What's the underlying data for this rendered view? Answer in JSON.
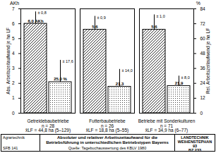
{
  "chart_data": {
    "type": "bar",
    "title": "Absoluter und relativer Arbeitszeitaufwand für die Betriebsführung in unterschiedlichen Betriebstypen Bayerns",
    "source": "Quelle: Tagebuchauswertung des KBLV 1980",
    "footer_left": [
      "Agrartechnik",
      "SFB 141"
    ],
    "footer_right": [
      "LANDTECHNIK WEIHENSTEPHAN",
      "93",
      "BZ 233"
    ],
    "ylabel": "Abs. Arbeitszeitaufwand je ha LF",
    "y2label": "Rel. Arbeitszeitaufwand je ha LF",
    "y_unit": "AKh",
    "y2_unit": "%",
    "categories": [
      "Getreidebaubetriebe",
      "Futterbaubetriebe",
      "Betriebe mit Sonderkulturen"
    ],
    "category_notes": [
      [
        "n = 28",
        "x̄LF = 44,8 ha (5–129)"
      ],
      [
        "n = 26",
        "x̄LF = 18,8 ha (5–55)"
      ],
      [
        "n = 71",
        "x̄LF = 34,9 ha (6–77)"
      ]
    ],
    "series": [
      {
        "axis": "y",
        "color": "#000000",
        "values": [
          6.0,
          5.6,
          5.6
        ],
        "value_labels": [
          "6,0 AKh",
          "5,6",
          "5,6"
        ],
        "errors": [
          0.8,
          0.9,
          1.0
        ],
        "error_labels": [
          "± 0,8",
          "± 0,9",
          "± 1,0"
        ]
      },
      {
        "axis": "y2",
        "color": "#000000",
        "values": [
          25.0,
          21.3,
          21.9
        ],
        "value_labels": [
          "25,0 %",
          "21,3",
          "21,9"
        ],
        "errors": [
          17.6,
          14.0,
          8.0
        ],
        "error_labels": [
          "± 17,6",
          "± 14,0",
          "± 8,0"
        ]
      }
    ],
    "ylim": [
      0,
      7
    ],
    "yticks": [
      0,
      1,
      2,
      3,
      4,
      5,
      6,
      7
    ],
    "y2lim": [
      0,
      84
    ],
    "y2ticks": [
      0,
      12,
      24,
      36,
      48,
      60,
      72,
      84
    ],
    "data_labels": true,
    "grid": false
  }
}
